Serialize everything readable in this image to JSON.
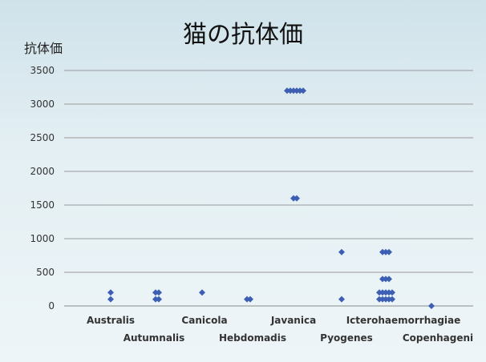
{
  "chart_data": {
    "type": "scatter",
    "title": "猫の抗体価",
    "ylabel": "抗体価",
    "xlabel": "",
    "ylim": [
      0,
      3500
    ],
    "yticks": [
      0,
      500,
      1000,
      1500,
      2000,
      2500,
      3000,
      3500
    ],
    "grid": true,
    "marker_color": "#3d5fb3",
    "categories": [
      "Australis",
      "Autumnalis",
      "Canicola",
      "Hebdomadis",
      "Javanica",
      "Pyogenes",
      "Icterohaemorrhagiae",
      "Copenhageni"
    ],
    "points": [
      {
        "category": "Australis",
        "y": 200
      },
      {
        "category": "Australis",
        "y": 100
      },
      {
        "category": "Autumnalis",
        "y": 200
      },
      {
        "category": "Autumnalis",
        "y": 200
      },
      {
        "category": "Autumnalis",
        "y": 100
      },
      {
        "category": "Autumnalis",
        "y": 100
      },
      {
        "category": "Canicola",
        "y": 200
      },
      {
        "category": "Hebdomadis",
        "y": 100
      },
      {
        "category": "Hebdomadis",
        "y": 100
      },
      {
        "category": "Javanica",
        "y": 3200
      },
      {
        "category": "Javanica",
        "y": 3200
      },
      {
        "category": "Javanica",
        "y": 3200
      },
      {
        "category": "Javanica",
        "y": 3200
      },
      {
        "category": "Javanica",
        "y": 3200
      },
      {
        "category": "Javanica",
        "y": 3200
      },
      {
        "category": "Javanica",
        "y": 1600
      },
      {
        "category": "Javanica",
        "y": 1600
      },
      {
        "category": "Pyogenes",
        "y": 800
      },
      {
        "category": "Pyogenes",
        "y": 100
      },
      {
        "category": "Icterohaemorrhagiae",
        "y": 800
      },
      {
        "category": "Icterohaemorrhagiae",
        "y": 800
      },
      {
        "category": "Icterohaemorrhagiae",
        "y": 800
      },
      {
        "category": "Icterohaemorrhagiae",
        "y": 400
      },
      {
        "category": "Icterohaemorrhagiae",
        "y": 400
      },
      {
        "category": "Icterohaemorrhagiae",
        "y": 400
      },
      {
        "category": "Icterohaemorrhagiae",
        "y": 200
      },
      {
        "category": "Icterohaemorrhagiae",
        "y": 200
      },
      {
        "category": "Icterohaemorrhagiae",
        "y": 200
      },
      {
        "category": "Icterohaemorrhagiae",
        "y": 200
      },
      {
        "category": "Icterohaemorrhagiae",
        "y": 200
      },
      {
        "category": "Icterohaemorrhagiae",
        "y": 100
      },
      {
        "category": "Icterohaemorrhagiae",
        "y": 100
      },
      {
        "category": "Icterohaemorrhagiae",
        "y": 100
      },
      {
        "category": "Icterohaemorrhagiae",
        "y": 100
      },
      {
        "category": "Icterohaemorrhagiae",
        "y": 100
      },
      {
        "category": "Copenhageni",
        "y": 0
      }
    ]
  }
}
